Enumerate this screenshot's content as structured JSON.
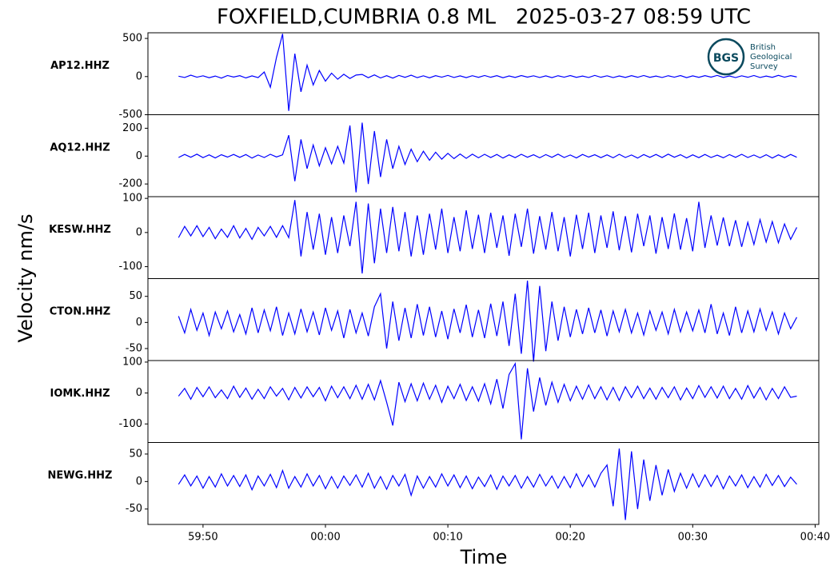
{
  "chart_data": {
    "type": "line",
    "title": "FOXFIELD,CUMBRIA 0.8 ML   2025-03-27 08:59 UTC",
    "x_label": "Time",
    "y_label": "Velocity nm/s",
    "logo": {
      "badge": "BGS",
      "lines": [
        "British",
        "Geological",
        "Survey"
      ]
    },
    "xlim": [
      45.5,
      100.3
    ],
    "xticks": [
      {
        "value": 50,
        "label": "59:50"
      },
      {
        "value": 60,
        "label": "00:00"
      },
      {
        "value": 70,
        "label": "00:10"
      },
      {
        "value": 80,
        "label": "00:20"
      },
      {
        "value": 90,
        "label": "00:30"
      },
      {
        "value": 100,
        "label": "00:40"
      }
    ],
    "x": [
      48,
      48.5,
      49,
      49.5,
      50,
      50.5,
      51,
      51.5,
      52,
      52.5,
      53,
      53.5,
      54,
      54.5,
      55,
      55.5,
      56,
      56.5,
      57,
      57.5,
      58,
      58.5,
      59,
      59.5,
      60,
      60.5,
      61,
      61.5,
      62,
      62.5,
      63,
      63.5,
      64,
      64.5,
      65,
      65.5,
      66,
      66.5,
      67,
      67.5,
      68,
      68.5,
      69,
      69.5,
      70,
      70.5,
      71,
      71.5,
      72,
      72.5,
      73,
      73.5,
      74,
      74.5,
      75,
      75.5,
      76,
      76.5,
      77,
      77.5,
      78,
      78.5,
      79,
      79.5,
      80,
      80.5,
      81,
      81.5,
      82,
      82.5,
      83,
      83.5,
      84,
      84.5,
      85,
      85.5,
      86,
      86.5,
      87,
      87.5,
      88,
      88.5,
      89,
      89.5,
      90,
      90.5,
      91,
      91.5,
      92,
      92.5,
      93,
      93.5,
      94,
      94.5,
      95,
      95.5,
      96,
      96.5,
      97,
      97.5,
      98,
      98.5
    ],
    "panels": [
      {
        "name": "AP12.HHZ",
        "color": "#0000ff",
        "ylim": [
          -500,
          574
        ],
        "yticks": [
          -500,
          0,
          500
        ],
        "values": [
          5,
          -12,
          18,
          -8,
          10,
          -15,
          7,
          -20,
          14,
          -6,
          12,
          -18,
          9,
          -14,
          60,
          -140,
          250,
          560,
          -450,
          300,
          -200,
          150,
          -110,
          80,
          -60,
          45,
          -35,
          30,
          -25,
          20,
          28,
          -15,
          22,
          -18,
          12,
          -20,
          15,
          -10,
          18,
          -14,
          10,
          -16,
          12,
          -8,
          15,
          -12,
          9,
          -14,
          11,
          -10,
          14,
          -9,
          12,
          -15,
          8,
          -11,
          13,
          -7,
          10,
          -12,
          9,
          -14,
          11,
          -8,
          13,
          -10,
          7,
          -12,
          15,
          -9,
          10,
          -13,
          8,
          -11,
          12,
          -9,
          14,
          -10,
          7,
          -12,
          11,
          -8,
          13,
          -14,
          9,
          -10,
          12,
          -7,
          15,
          -11,
          8,
          -13,
          10,
          -9,
          14,
          -12,
          7,
          -10,
          16,
          -8,
          12,
          -5
        ]
      },
      {
        "name": "AQ12.HHZ",
        "color": "#0000ff",
        "ylim": [
          -291,
          297
        ],
        "yticks": [
          -200,
          0,
          200
        ],
        "values": [
          -10,
          12,
          -8,
          14,
          -11,
          9,
          -13,
          10,
          -7,
          12,
          -9,
          11,
          -14,
          8,
          -10,
          13,
          -6,
          9,
          150,
          -180,
          120,
          -90,
          80,
          -70,
          60,
          -55,
          70,
          -50,
          220,
          -260,
          240,
          -200,
          180,
          -150,
          120,
          -90,
          70,
          -60,
          50,
          -40,
          35,
          -30,
          28,
          -22,
          20,
          -18,
          15,
          -16,
          14,
          -12,
          13,
          -10,
          12,
          -14,
          9,
          -11,
          13,
          -8,
          10,
          -12,
          11,
          -9,
          14,
          -10,
          8,
          -13,
          12,
          -7,
          10,
          -11,
          9,
          -12,
          13,
          -10,
          8,
          -14,
          11,
          -9,
          12,
          -10,
          14,
          -8,
          10,
          -13,
          9,
          -11,
          12,
          -10,
          7,
          -12,
          11,
          -9,
          13,
          -10,
          8,
          -12,
          10,
          -14,
          9,
          -11,
          12,
          -8
        ]
      },
      {
        "name": "KESW.HHZ",
        "color": "#0000ff",
        "ylim": [
          -135,
          105
        ],
        "yticks": [
          -100,
          0,
          100
        ],
        "values": [
          -15,
          18,
          -10,
          20,
          -12,
          15,
          -18,
          10,
          -14,
          20,
          -16,
          12,
          -20,
          15,
          -10,
          18,
          -14,
          20,
          -15,
          95,
          -70,
          60,
          -50,
          55,
          -65,
          45,
          -60,
          50,
          -40,
          90,
          -120,
          85,
          -90,
          70,
          -60,
          75,
          -55,
          60,
          -70,
          50,
          -65,
          55,
          -50,
          70,
          -60,
          45,
          -55,
          65,
          -48,
          52,
          -60,
          58,
          -45,
          50,
          -68,
          55,
          -42,
          70,
          -62,
          48,
          -50,
          60,
          -55,
          45,
          -70,
          52,
          -48,
          58,
          -60,
          50,
          -45,
          62,
          -52,
          48,
          -58,
          55,
          -40,
          50,
          -62,
          45,
          -48,
          56,
          -50,
          42,
          -55,
          90,
          -45,
          50,
          -38,
          44,
          -40,
          36,
          -42,
          30,
          -35,
          38,
          -28,
          32,
          -30,
          25,
          -20,
          15
        ]
      },
      {
        "name": "CTON.HHZ",
        "color": "#0000ff",
        "ylim": [
          -73,
          84
        ],
        "yticks": [
          -50,
          0,
          50
        ],
        "values": [
          12,
          -20,
          25,
          -15,
          18,
          -25,
          20,
          -12,
          22,
          -18,
          15,
          -22,
          28,
          -20,
          24,
          -16,
          30,
          -25,
          18,
          -22,
          26,
          -18,
          20,
          -24,
          28,
          -15,
          22,
          -30,
          25,
          -20,
          18,
          -26,
          30,
          55,
          -50,
          40,
          -35,
          28,
          -30,
          35,
          -25,
          30,
          -28,
          22,
          -32,
          26,
          -20,
          34,
          -28,
          24,
          -30,
          36,
          -26,
          40,
          -45,
          55,
          -60,
          80,
          -75,
          70,
          -55,
          40,
          -35,
          30,
          -28,
          25,
          -22,
          28,
          -20,
          24,
          -26,
          22,
          -18,
          25,
          -20,
          18,
          -24,
          22,
          -15,
          20,
          -22,
          25,
          -18,
          20,
          -16,
          24,
          -20,
          35,
          -22,
          18,
          -25,
          30,
          -20,
          22,
          -18,
          26,
          -15,
          20,
          -22,
          18,
          -12,
          10
        ]
      },
      {
        "name": "IOMK.HHZ",
        "color": "#0000ff",
        "ylim": [
          -160,
          105
        ],
        "yticks": [
          -100,
          0,
          100
        ],
        "values": [
          -10,
          15,
          -20,
          18,
          -12,
          20,
          -15,
          10,
          -18,
          22,
          -14,
          16,
          -20,
          12,
          -18,
          20,
          -10,
          15,
          -22,
          18,
          -16,
          20,
          -12,
          18,
          -25,
          22,
          -15,
          20,
          -18,
          25,
          -20,
          28,
          -22,
          40,
          -30,
          -105,
          35,
          -28,
          30,
          -25,
          32,
          -20,
          25,
          -30,
          22,
          -18,
          28,
          -24,
          20,
          -26,
          30,
          -35,
          45,
          -50,
          60,
          95,
          -150,
          80,
          -60,
          50,
          -40,
          35,
          -30,
          28,
          -25,
          22,
          -20,
          26,
          -18,
          20,
          -22,
          18,
          -24,
          20,
          -15,
          22,
          -18,
          16,
          -20,
          18,
          -15,
          20,
          -22,
          16,
          -18,
          24,
          -14,
          20,
          -16,
          22,
          -18,
          15,
          -20,
          24,
          -16,
          18,
          -22,
          15,
          -18,
          20,
          -14,
          -10
        ]
      },
      {
        "name": "NEWG.HHZ",
        "color": "#0000ff",
        "ylim": [
          -78,
          71
        ],
        "yticks": [
          -50,
          0,
          50
        ],
        "values": [
          -5,
          12,
          -8,
          10,
          -12,
          9,
          -10,
          14,
          -8,
          11,
          -9,
          12,
          -15,
          10,
          -8,
          13,
          -11,
          20,
          -12,
          9,
          -10,
          14,
          -8,
          11,
          -13,
          9,
          -12,
          10,
          -7,
          12,
          -10,
          15,
          -12,
          9,
          -14,
          11,
          -8,
          13,
          -25,
          10,
          -12,
          9,
          -10,
          14,
          -8,
          12,
          -11,
          10,
          -13,
          8,
          -9,
          12,
          -14,
          10,
          -8,
          11,
          -12,
          9,
          -10,
          13,
          -8,
          10,
          -12,
          9,
          -11,
          14,
          -9,
          12,
          -10,
          15,
          30,
          -45,
          60,
          -70,
          55,
          -50,
          40,
          -35,
          30,
          -25,
          22,
          -18,
          15,
          -12,
          14,
          -10,
          12,
          -9,
          11,
          -13,
          10,
          -8,
          12,
          -11,
          9,
          -10,
          13,
          -7,
          11,
          -9,
          8,
          -5
        ]
      }
    ]
  }
}
